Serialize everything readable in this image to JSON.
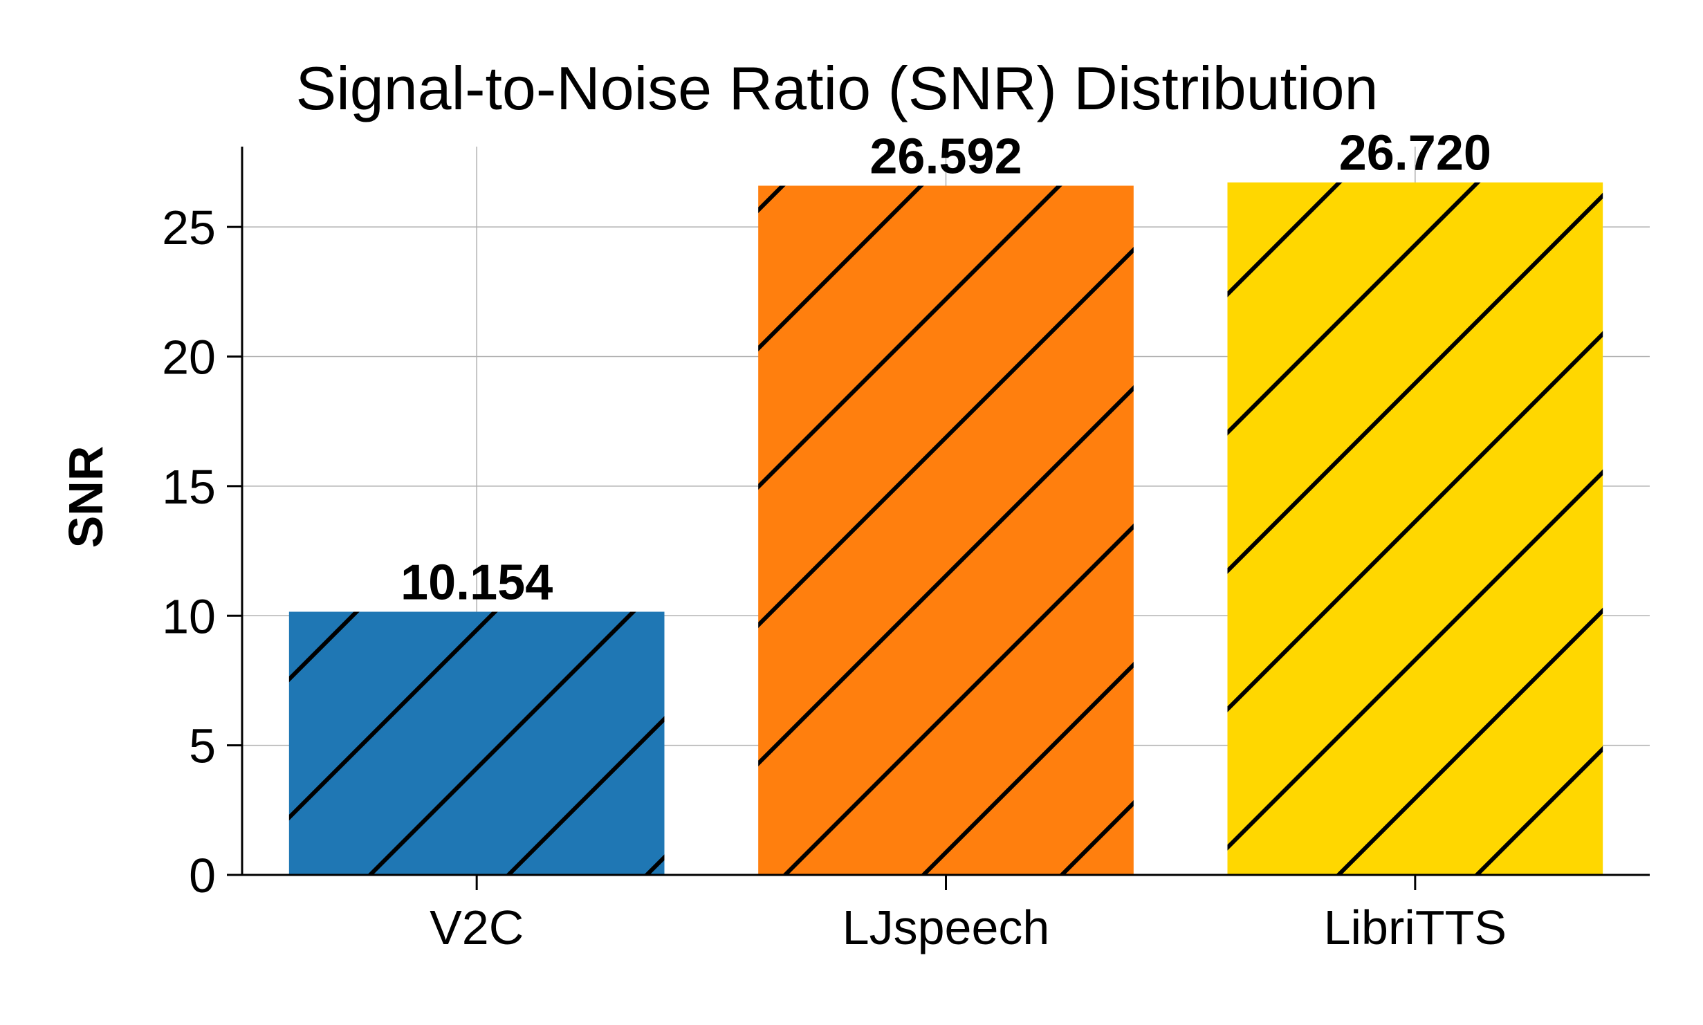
{
  "chart_data": {
    "type": "bar",
    "title": "Signal-to-Noise Ratio (SNR) Distribution",
    "xlabel": "",
    "ylabel": "SNR",
    "categories": [
      "V2C",
      "LJspeech",
      "LibriTTS"
    ],
    "values": [
      10.154,
      26.592,
      26.72
    ],
    "value_labels": [
      "10.154",
      "26.592",
      "26.720"
    ],
    "colors": [
      "#1f77b4",
      "#ff7f0e",
      "#ffd700"
    ],
    "hatch": "diagonal",
    "ylim": [
      0,
      28.1
    ],
    "yticks": [
      0,
      5,
      10,
      15,
      20,
      25
    ],
    "grid": true,
    "legend": "none"
  }
}
